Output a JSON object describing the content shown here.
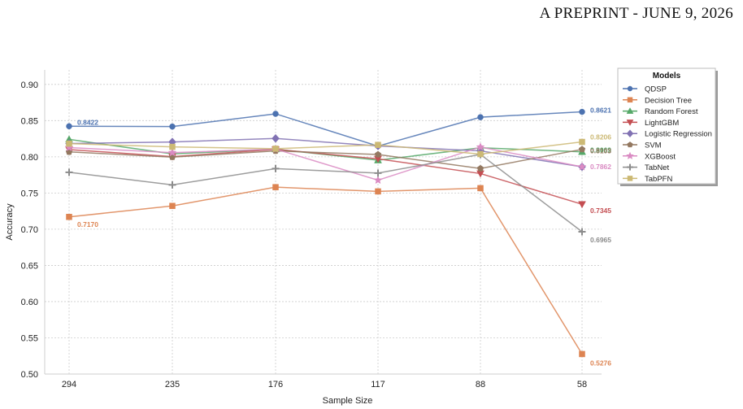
{
  "header": {
    "text": "A PREPRINT - JUNE 9, 2026"
  },
  "chart_data": {
    "type": "line",
    "title": "",
    "xlabel": "Sample Size",
    "ylabel": "Accuracy",
    "categories": [
      "294",
      "235",
      "176",
      "117",
      "88",
      "58"
    ],
    "ylim": [
      0.5,
      0.92
    ],
    "yticks": [
      "0.50",
      "0.55",
      "0.60",
      "0.65",
      "0.70",
      "0.75",
      "0.80",
      "0.85",
      "0.90"
    ],
    "grid": true,
    "legend": {
      "title": "Models",
      "placement": "outside-right"
    },
    "series": [
      {
        "name": "QDSP",
        "color": "#4c72b0",
        "marker": "circle",
        "values": [
          0.8422,
          0.8418,
          0.8594,
          0.8148,
          0.8547,
          0.8621
        ]
      },
      {
        "name": "Decision Tree",
        "color": "#dd8452",
        "marker": "square",
        "values": [
          0.717,
          0.7322,
          0.7581,
          0.7522,
          0.7567,
          0.5276
        ]
      },
      {
        "name": "Random Forest",
        "color": "#55a868",
        "marker": "triangle-up",
        "values": [
          0.8241,
          0.804,
          0.8105,
          0.7953,
          0.8125,
          0.8069
        ]
      },
      {
        "name": "LightGBM",
        "color": "#c44e52",
        "marker": "triangle-down",
        "values": [
          0.81,
          0.8003,
          0.8103,
          0.7972,
          0.7769,
          0.7345
        ]
      },
      {
        "name": "Logistic Regression",
        "color": "#8172b3",
        "marker": "diamond",
        "values": [
          0.8183,
          0.8205,
          0.8254,
          0.815,
          0.8082,
          0.7862
        ]
      },
      {
        "name": "SVM",
        "color": "#937860",
        "marker": "pentagon",
        "values": [
          0.8068,
          0.7996,
          0.8081,
          0.8032,
          0.7839,
          0.8103
        ]
      },
      {
        "name": "XGBoost",
        "color": "#da8bc3",
        "marker": "star",
        "values": [
          0.8128,
          0.8058,
          0.8107,
          0.7677,
          0.8135,
          0.7862
        ]
      },
      {
        "name": "TabNet",
        "color": "#8c8c8c",
        "marker": "plus",
        "values": [
          0.7786,
          0.7612,
          0.7837,
          0.7775,
          0.8033,
          0.6965
        ]
      },
      {
        "name": "TabPFN",
        "color": "#ccb974",
        "marker": "square",
        "values": [
          0.8182,
          0.8138,
          0.8112,
          0.8165,
          0.8038,
          0.8206
        ]
      }
    ],
    "annotations": [
      {
        "text": "0.8422",
        "series": "QDSP",
        "x": "294",
        "y": 0.8422,
        "color": "#4c72b0"
      },
      {
        "text": "0.7170",
        "series": "Decision Tree",
        "x": "294",
        "y": 0.717,
        "color": "#dd8452"
      },
      {
        "text": "0.8621",
        "series": "QDSP",
        "x": "58",
        "y": 0.8621,
        "color": "#4c72b0"
      },
      {
        "text": "0.8206",
        "series": "TabPFN",
        "x": "58",
        "y": 0.8206,
        "color": "#ccb974"
      },
      {
        "text": "0.8069",
        "series": "Random Forest",
        "x": "58",
        "y": 0.8069,
        "color": "#55a868"
      },
      {
        "text": "0.8103",
        "series": "SVM",
        "x": "58",
        "y": 0.8103,
        "color": "#937860"
      },
      {
        "text": "0.7862",
        "series": "XGBoost",
        "x": "58",
        "y": 0.7862,
        "color": "#da8bc3"
      },
      {
        "text": "0.7345",
        "series": "LightGBM",
        "x": "58",
        "y": 0.7345,
        "color": "#c44e52"
      },
      {
        "text": "0.6965",
        "series": "TabNet",
        "x": "58",
        "y": 0.6965,
        "color": "#8c8c8c"
      },
      {
        "text": "0.5276",
        "series": "Decision Tree",
        "x": "58",
        "y": 0.5276,
        "color": "#dd8452"
      }
    ]
  }
}
